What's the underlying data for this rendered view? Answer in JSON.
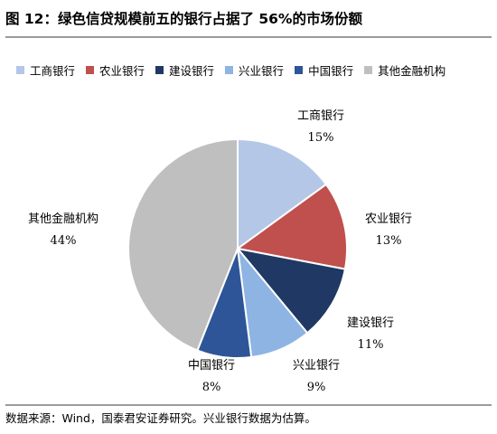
{
  "title": "图 12：绿色信贷规模前五的银行占据了 56%的市场份额",
  "footer": "数据来源：Wind，国泰君安证券研究。兴业银行数据为估算。",
  "chart_data": {
    "type": "pie",
    "categories": [
      "工商银行",
      "农业银行",
      "建设银行",
      "兴业银行",
      "中国银行",
      "其他金融机构"
    ],
    "values": [
      15,
      13,
      11,
      9,
      8,
      44
    ],
    "value_labels": [
      "15%",
      "13%",
      "11%",
      "9%",
      "8%",
      "44%"
    ],
    "colors": [
      "#b4c7e7",
      "#c0504d",
      "#1f3864",
      "#8eb4e3",
      "#2e5597",
      "#bfbfbf"
    ],
    "legend_position": "top",
    "start": "top, clockwise"
  }
}
